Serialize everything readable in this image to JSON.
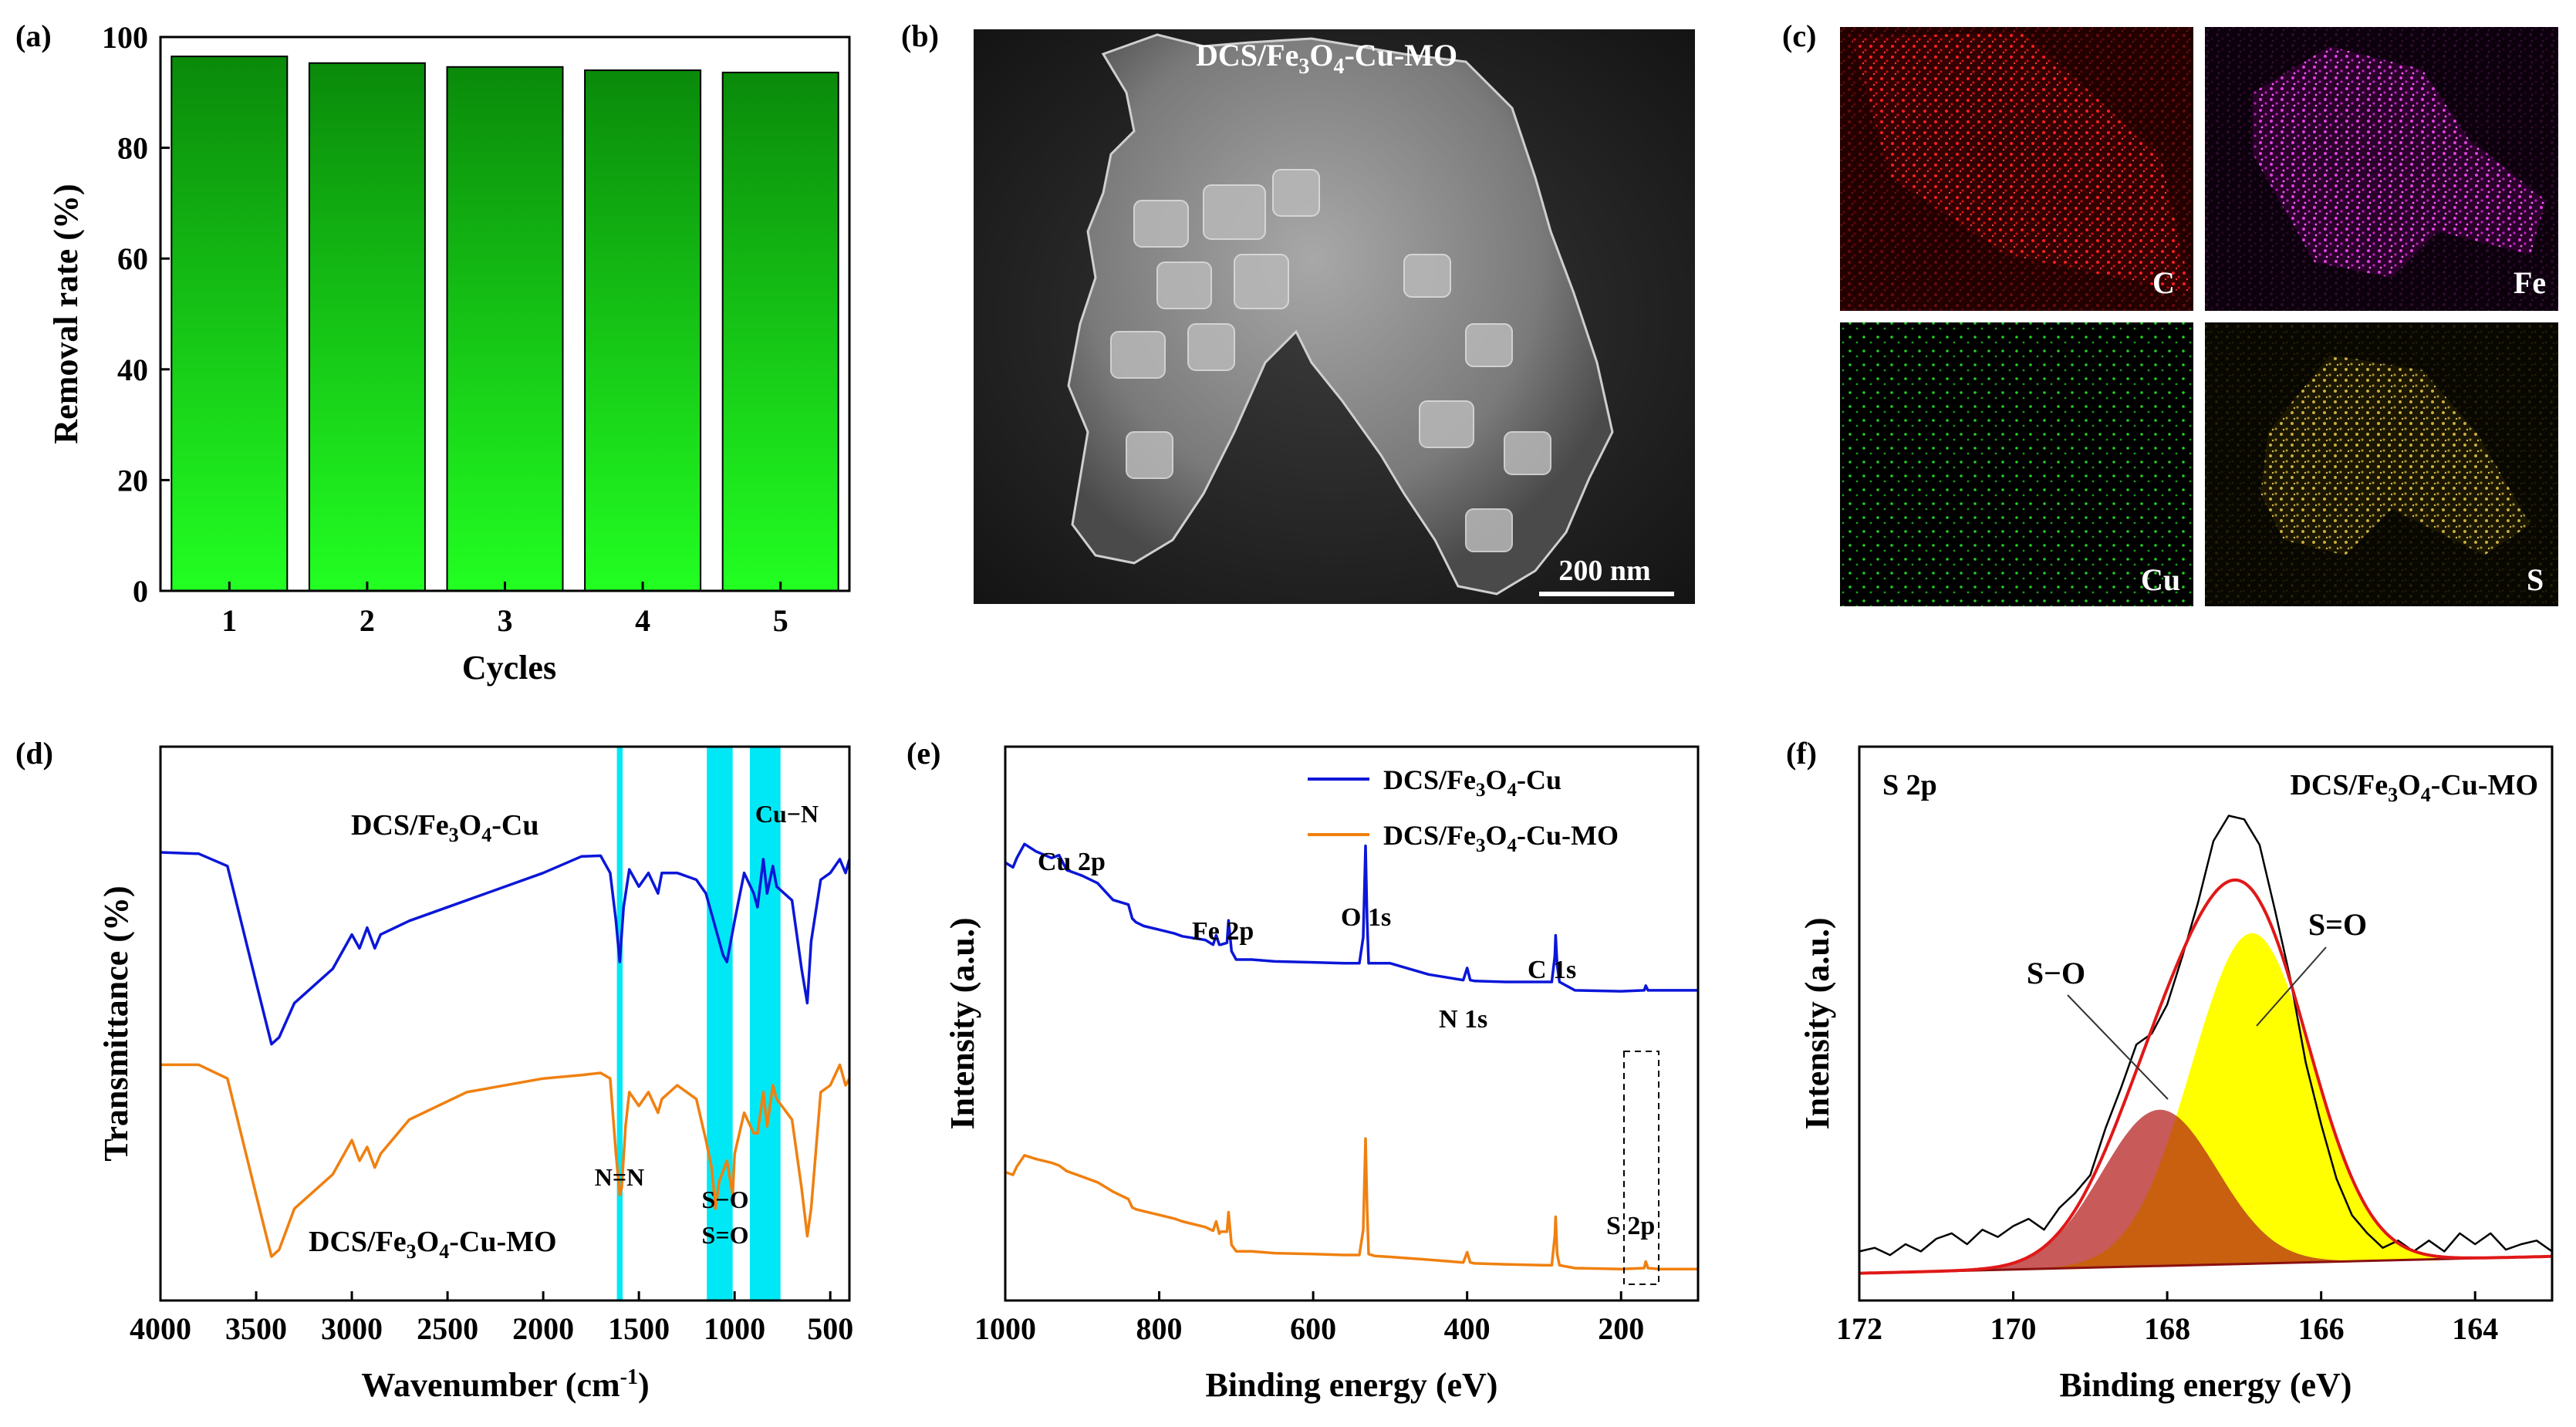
{
  "panels": {
    "a": "(a)",
    "b": "(b)",
    "c": "(c)",
    "d": "(d)",
    "e": "(e)",
    "f": "(f)"
  },
  "colors": {
    "bar_top": "#0a8a0a",
    "bar_bottom": "#22ff22",
    "blue": "#0b16d8",
    "orange": "#f08010",
    "cyan": "#00e8f5",
    "red": "#e01818",
    "peak_SO": "#c85a5a",
    "peak_S_dbl_O": "#ffff00",
    "overlap": "#c86010"
  },
  "sem": {
    "label": "DCS/Fe3O4-Cu-MO",
    "label_parts": [
      "DCS/Fe",
      "3",
      "O",
      "4",
      "-Cu-MO"
    ],
    "scale": "200 nm"
  },
  "mapping": {
    "C": "C",
    "Fe": "Fe",
    "Cu": "Cu",
    "S": "S"
  },
  "chart_data": [
    {
      "id": "a",
      "type": "bar",
      "categories": [
        "1",
        "2",
        "3",
        "4",
        "5"
      ],
      "values": [
        96.5,
        95.3,
        94.6,
        94.0,
        93.6
      ],
      "xlabel": "Cycles",
      "ylabel": "Removal rate (%)",
      "ylim": [
        0,
        100
      ],
      "yticks": [
        0,
        20,
        40,
        60,
        80,
        100
      ]
    },
    {
      "id": "d",
      "type": "line",
      "xlabel_parts": [
        "Wavenumber (cm",
        "-1",
        ")"
      ],
      "ylabel": "Transmittance (%)",
      "xlim": [
        4000,
        400
      ],
      "xticks": [
        4000,
        3500,
        3000,
        2500,
        2000,
        1500,
        1000,
        500
      ],
      "highlight_bands": [
        [
          1615,
          1585
        ],
        [
          1145,
          1010
        ],
        [
          920,
          760
        ]
      ],
      "series": [
        {
          "name": "DCS/Fe3O4-Cu",
          "label_parts": [
            "DCS/Fe",
            "3",
            "O",
            "4",
            "-Cu"
          ],
          "x": [
            4000,
            3800,
            3650,
            3500,
            3420,
            3380,
            3300,
            3100,
            3000,
            2960,
            2920,
            2880,
            2850,
            2700,
            2400,
            2000,
            1800,
            1700,
            1650,
            1620,
            1600,
            1580,
            1550,
            1500,
            1450,
            1400,
            1380,
            1300,
            1200,
            1150,
            1100,
            1060,
            1040,
            1000,
            950,
            900,
            880,
            850,
            830,
            800,
            780,
            700,
            650,
            620,
            600,
            550,
            500,
            450,
            420,
            400
          ],
          "y": [
            0.0,
            0.2,
            2.0,
            19,
            28,
            27,
            22,
            17,
            12,
            14,
            11,
            14,
            12,
            10,
            7,
            3,
            0.6,
            0.5,
            3,
            10,
            16,
            8,
            2.5,
            5,
            3,
            6,
            3,
            3,
            4,
            6,
            11,
            15,
            16,
            10,
            3,
            6,
            8,
            1,
            6,
            2,
            5,
            7,
            17,
            22,
            13,
            4,
            3,
            1,
            3,
            1
          ]
        },
        {
          "name": "DCS/Fe3O4-Cu-MO",
          "label_parts": [
            "DCS/Fe",
            "3",
            "O",
            "4",
            "-Cu-MO"
          ],
          "x": [
            4000,
            3800,
            3650,
            3500,
            3420,
            3380,
            3300,
            3100,
            3000,
            2960,
            2920,
            2880,
            2850,
            2700,
            2400,
            2000,
            1800,
            1700,
            1650,
            1620,
            1600,
            1590,
            1570,
            1550,
            1500,
            1450,
            1400,
            1380,
            1300,
            1200,
            1150,
            1120,
            1100,
            1080,
            1040,
            1010,
            1000,
            950,
            900,
            880,
            850,
            830,
            800,
            780,
            700,
            650,
            620,
            600,
            550,
            500,
            450,
            420,
            400
          ],
          "y": [
            31,
            31,
            33,
            50,
            59,
            58,
            52,
            47,
            42,
            45,
            43,
            46,
            44,
            39,
            35,
            33,
            32.5,
            32.2,
            33,
            44,
            50,
            49,
            40,
            35,
            37,
            35,
            38,
            36,
            34,
            36,
            42,
            46,
            52,
            48,
            45,
            50,
            44,
            38,
            41,
            41,
            35,
            40,
            34,
            36,
            39,
            49,
            56,
            52,
            35,
            34,
            31,
            34,
            33
          ]
        }
      ],
      "annotations": [
        "N=N",
        "S−O",
        "S=O",
        "Cu−N"
      ]
    },
    {
      "id": "e",
      "type": "line",
      "xlabel": "Binding energy (eV)",
      "ylabel": "Intensity (a.u.)",
      "xlim": [
        1000,
        100
      ],
      "xticks": [
        1000,
        800,
        600,
        400,
        200
      ],
      "series": [
        {
          "name": "DCS/Fe3O4-Cu",
          "legend_parts": [
            "DCS/Fe",
            "3",
            "O",
            "4",
            "-Cu"
          ],
          "x": [
            1000,
            990,
            985,
            975,
            960,
            940,
            930,
            920,
            900,
            880,
            860,
            840,
            835,
            830,
            820,
            800,
            780,
            770,
            740,
            730,
            726,
            722,
            720,
            712,
            710,
            706,
            700,
            680,
            650,
            600,
            560,
            540,
            535,
            532,
            530,
            528,
            520,
            500,
            450,
            420,
            405,
            400,
            396,
            390,
            350,
            300,
            290,
            286,
            285,
            283,
            280,
            260,
            200,
            170,
            168,
            165,
            150,
            100
          ],
          "y": [
            840,
            835,
            845,
            860,
            852,
            845,
            848,
            832,
            826,
            818,
            800,
            795,
            780,
            776,
            772,
            768,
            764,
            761,
            757,
            752,
            762,
            752,
            752,
            754,
            778,
            745,
            736,
            736,
            734,
            733,
            732,
            732,
            760,
            858,
            780,
            732,
            732,
            732,
            720,
            716,
            714,
            727,
            714,
            713,
            712,
            712,
            712,
            740,
            762,
            730,
            712,
            703,
            702,
            703,
            708,
            703,
            703,
            703
          ]
        },
        {
          "name": "DCS/Fe3O4-Cu-MO",
          "legend_parts": [
            "DCS/Fe",
            "3",
            "O",
            "4",
            "-Cu-MO"
          ],
          "x": [
            1000,
            990,
            985,
            975,
            960,
            940,
            930,
            920,
            900,
            880,
            860,
            840,
            835,
            830,
            820,
            800,
            780,
            770,
            740,
            730,
            726,
            722,
            720,
            712,
            710,
            706,
            700,
            680,
            650,
            600,
            560,
            540,
            535,
            532,
            530,
            528,
            520,
            500,
            450,
            420,
            405,
            400,
            396,
            390,
            350,
            300,
            290,
            286,
            285,
            283,
            280,
            260,
            200,
            170,
            168,
            165,
            150,
            100
          ],
          "y": [
            508,
            505,
            514,
            526,
            522,
            518,
            515,
            509,
            503,
            497,
            487,
            479,
            470,
            468,
            466,
            462,
            458,
            455,
            449,
            445,
            455,
            442,
            444,
            444,
            465,
            430,
            423,
            423,
            421,
            420,
            419,
            419,
            446,
            544,
            470,
            420,
            418,
            417,
            414,
            412,
            411,
            422,
            411,
            410,
            409,
            408,
            408,
            440,
            460,
            420,
            408,
            405,
            404,
            405,
            412,
            405,
            404,
            404
          ]
        }
      ],
      "annotations": [
        "Cu 2p",
        "Fe 2p",
        "O 1s",
        "N 1s",
        "C 1s",
        "S 2p"
      ]
    },
    {
      "id": "f",
      "type": "line",
      "title": "S 2p",
      "sample_parts": [
        "DCS/Fe",
        "3",
        "O",
        "4",
        "-Cu-MO"
      ],
      "xlabel": "Binding energy (eV)",
      "ylabel": "Intensity (a.u.)",
      "xlim": [
        172,
        163
      ],
      "xticks": [
        172,
        170,
        168,
        166,
        164
      ],
      "baseline": {
        "x": [
          172,
          163
        ],
        "y": [
          0.0,
          0.93
        ]
      },
      "peaks": [
        {
          "name": "S−O",
          "center": 168.1,
          "sigma": 0.75,
          "height": 8.6
        },
        {
          "name": "S=O",
          "center": 166.9,
          "sigma": 0.78,
          "height": 18.2
        }
      ],
      "raw": {
        "x": [
          172.0,
          171.8,
          171.6,
          171.4,
          171.2,
          171.0,
          170.8,
          170.6,
          170.4,
          170.2,
          170.0,
          169.8,
          169.6,
          169.4,
          169.2,
          169.0,
          168.8,
          168.6,
          168.4,
          168.2,
          168.0,
          167.8,
          167.6,
          167.4,
          167.2,
          167.0,
          166.8,
          166.6,
          166.4,
          166.2,
          166.0,
          165.8,
          165.6,
          165.4,
          165.2,
          165.0,
          164.8,
          164.6,
          164.4,
          164.2,
          164.0,
          163.8,
          163.6,
          163.4,
          163.2,
          163.0
        ],
        "y": [
          1.2,
          1.4,
          1.0,
          1.6,
          1.2,
          1.9,
          2.2,
          1.6,
          2.4,
          2.0,
          2.6,
          3.0,
          2.4,
          3.6,
          4.4,
          5.4,
          8.0,
          10.2,
          12.6,
          13.2,
          14.8,
          17.5,
          20.4,
          23.8,
          25.2,
          25.0,
          23.6,
          20.0,
          16.2,
          11.6,
          8.2,
          5.2,
          3.2,
          2.2,
          1.4,
          1.8,
          1.2,
          1.8,
          1.2,
          2.2,
          1.6,
          2.2,
          1.3,
          1.6,
          1.8,
          1.2
        ]
      },
      "ylim": [
        -1.5,
        29
      ]
    }
  ]
}
